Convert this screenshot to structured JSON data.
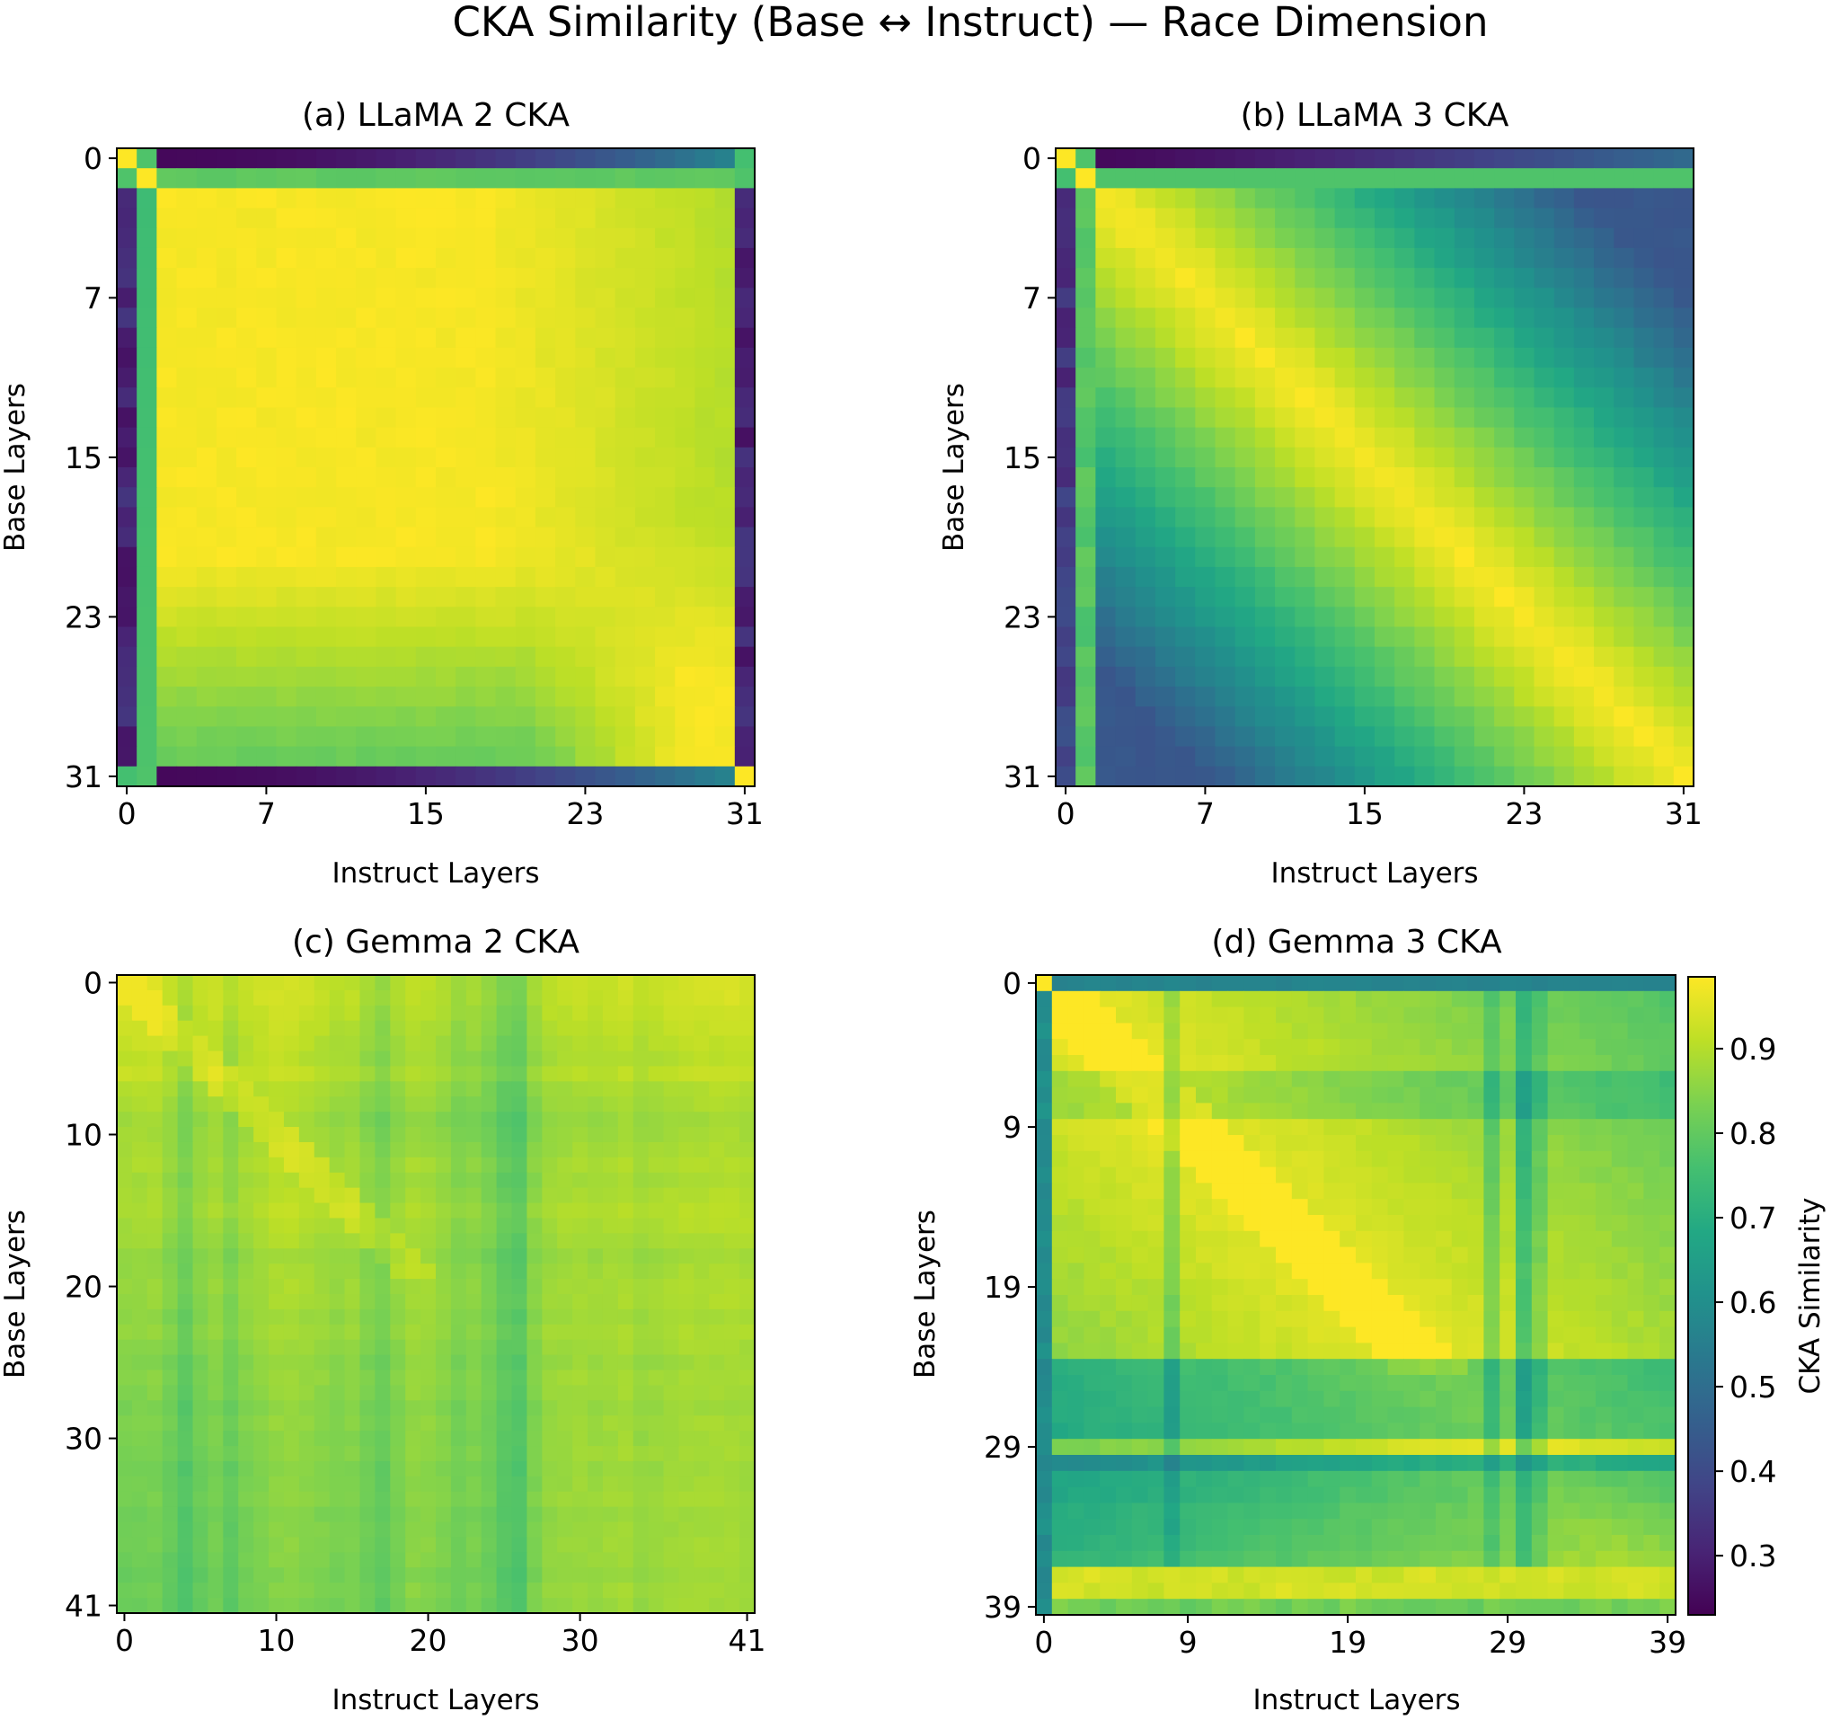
{
  "figure": {
    "title": "CKA Similarity (Base ↔ Instruct) — Race Dimension"
  },
  "colorbar": {
    "label": "CKA Similarity",
    "range": [
      0.23,
      0.985
    ],
    "ticks": [
      "0.3",
      "0.4",
      "0.5",
      "0.6",
      "0.7",
      "0.8",
      "0.9"
    ]
  },
  "chart_data": [
    {
      "type": "heatmap",
      "id": "a",
      "title": "(a) LLaMA 2 CKA",
      "xlabel": "Instruct Layers",
      "ylabel": "Base Layers",
      "n": 32,
      "ticks": [
        0,
        7,
        15,
        23,
        31
      ],
      "pattern": "llama2",
      "value_range": [
        0.23,
        0.985
      ]
    },
    {
      "type": "heatmap",
      "id": "b",
      "title": "(b) LLaMA 3 CKA",
      "xlabel": "Instruct Layers",
      "ylabel": "Base Layers",
      "n": 32,
      "ticks": [
        0,
        7,
        15,
        23,
        31
      ],
      "pattern": "llama3",
      "value_range": [
        0.23,
        0.985
      ]
    },
    {
      "type": "heatmap",
      "id": "c",
      "title": "(c) Gemma 2 CKA",
      "xlabel": "Instruct Layers",
      "ylabel": "Base Layers",
      "n": 42,
      "ticks": [
        0,
        10,
        20,
        30,
        41
      ],
      "pattern": "gemma2",
      "value_range": [
        0.65,
        0.97
      ]
    },
    {
      "type": "heatmap",
      "id": "d",
      "title": "(d) Gemma 3 CKA",
      "xlabel": "Instruct Layers",
      "ylabel": "Base Layers",
      "n": 40,
      "ticks": [
        0,
        9,
        19,
        29,
        39
      ],
      "pattern": "gemma3",
      "value_range": [
        0.45,
        0.985
      ]
    }
  ]
}
